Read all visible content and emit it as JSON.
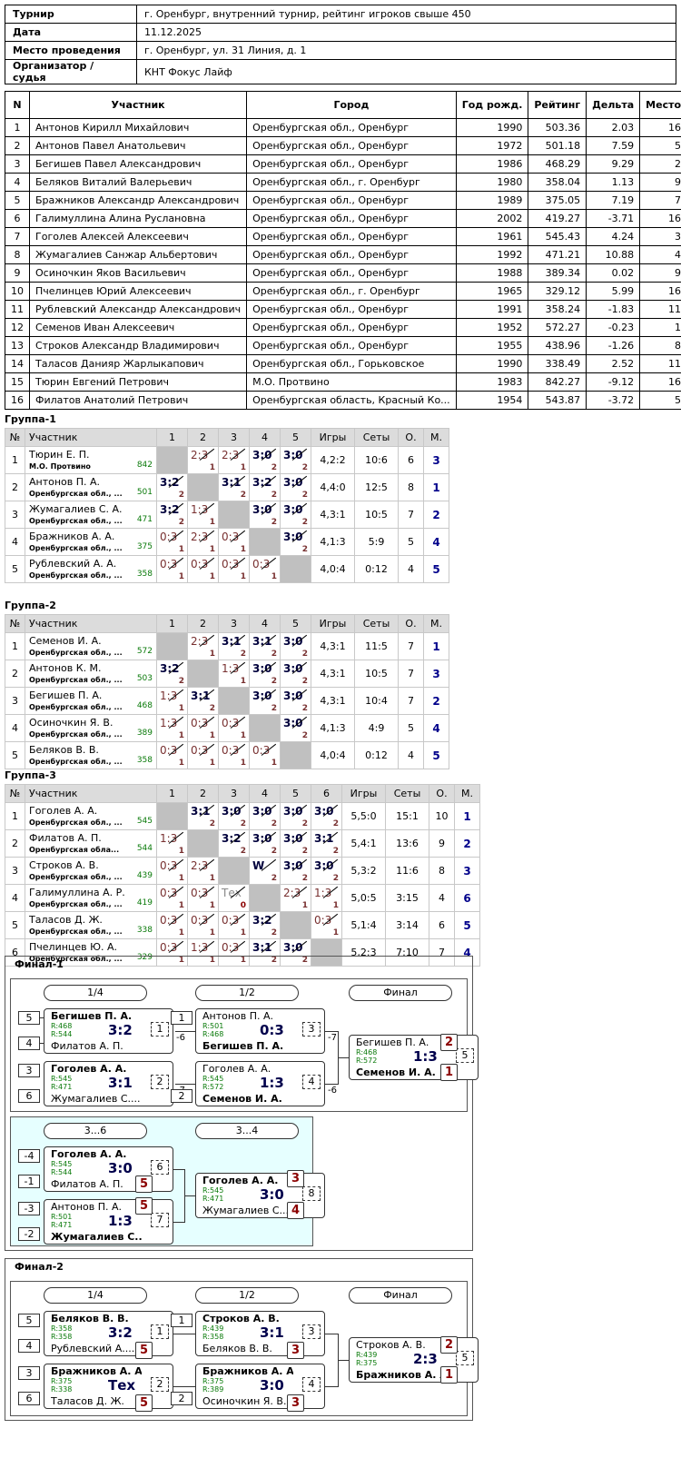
{
  "info": [
    {
      "label": "Турнир",
      "value": "г. Оренбург, внутренний турнир, рейтинг игроков свыше 450"
    },
    {
      "label": "Дата",
      "value": "11.12.2025"
    },
    {
      "label": "Место проведения",
      "value": "г. Оренбург, ул. 31 Линия, д. 1"
    },
    {
      "label": "Организатор / судья",
      "value": "КНТ Фокус Лайф"
    }
  ],
  "participants_headers": [
    "N",
    "Участник",
    "Город",
    "Год рожд.",
    "Рейтинг",
    "Дельта",
    "Место"
  ],
  "participants": [
    [
      "1",
      "Антонов Кирилл Михайлович",
      "Оренбургская обл., Оренбург",
      "1990",
      "503.36",
      "2.03",
      "16"
    ],
    [
      "2",
      "Антонов Павел Анатольевич",
      "Оренбургская обл., Оренбург",
      "1972",
      "501.18",
      "7.59",
      "5"
    ],
    [
      "3",
      "Бегишев Павел Александрович",
      "Оренбургская обл., Оренбург",
      "1986",
      "468.29",
      "9.29",
      "2"
    ],
    [
      "4",
      "Беляков Виталий Валерьевич",
      "Оренбургская обл., г. Оренбург",
      "1980",
      "358.04",
      "1.13",
      "9"
    ],
    [
      "5",
      "Бражников Александр Александрович",
      "Оренбургская обл., Оренбург",
      "1989",
      "375.05",
      "7.19",
      "7"
    ],
    [
      "6",
      "Галимуллина Алина Руслановна",
      "Оренбургская обл., Оренбург",
      "2002",
      "419.27",
      "-3.71",
      "16"
    ],
    [
      "7",
      "Гоголев Алексей Алексеевич",
      "Оренбургская обл., Оренбург",
      "1961",
      "545.43",
      "4.24",
      "3"
    ],
    [
      "8",
      "Жумагалиев Санжар Альбертович",
      "Оренбургская обл., Оренбург",
      "1992",
      "471.21",
      "10.88",
      "4"
    ],
    [
      "9",
      "Осиночкин Яков Васильевич",
      "Оренбургская обл., Оренбург",
      "1988",
      "389.34",
      "0.02",
      "9"
    ],
    [
      "10",
      "Пчелинцев Юрий Алексеевич",
      "Оренбургская обл., г. Оренбург",
      "1965",
      "329.12",
      "5.99",
      "16"
    ],
    [
      "11",
      "Рублевский Александр Александрович",
      "Оренбургская обл., Оренбург",
      "1991",
      "358.24",
      "-1.83",
      "11"
    ],
    [
      "12",
      "Семенов Иван Алексеевич",
      "Оренбургская обл., Оренбург",
      "1952",
      "572.27",
      "-0.23",
      "1"
    ],
    [
      "13",
      "Строков Александр Владимирович",
      "Оренбургская обл., Оренбург",
      "1955",
      "438.96",
      "-1.26",
      "8"
    ],
    [
      "14",
      "Таласов Данияр Жарлыкапович",
      "Оренбургская обл., Горьковское",
      "1990",
      "338.49",
      "2.52",
      "11"
    ],
    [
      "15",
      "Тюрин Евгений Петрович",
      "М.О. Протвино",
      "1983",
      "842.27",
      "-9.12",
      "16"
    ],
    [
      "16",
      "Филатов Анатолий Петрович",
      "Оренбургская область, Красный Ко...",
      "1954",
      "543.87",
      "-3.72",
      "5"
    ]
  ],
  "groups": [
    {
      "title": "Группа-1",
      "headers": [
        "№",
        "Участник",
        "1",
        "2",
        "3",
        "4",
        "5",
        "Игры",
        "Сеты",
        "О.",
        "М."
      ],
      "rows": [
        {
          "n": "1",
          "name": "Тюрин Е. П.",
          "city": "М.О. Протвино",
          "rating": "842",
          "cells": [
            null,
            [
              "2:3",
              "1",
              "l"
            ],
            [
              "2:3",
              "1",
              "l"
            ],
            [
              "3:0",
              "2",
              "w"
            ],
            [
              "3:0",
              "2",
              "w"
            ]
          ],
          "games": "4,2:2",
          "sets": "10:6",
          "pts": "6",
          "place": "3"
        },
        {
          "n": "2",
          "name": "Антонов П. А.",
          "city": "Оренбургская обл., ...",
          "rating": "501",
          "cells": [
            [
              "3:2",
              "2",
              "w"
            ],
            null,
            [
              "3:1",
              "2",
              "w"
            ],
            [
              "3:2",
              "2",
              "w"
            ],
            [
              "3:0",
              "2",
              "w"
            ]
          ],
          "games": "4,4:0",
          "sets": "12:5",
          "pts": "8",
          "place": "1"
        },
        {
          "n": "3",
          "name": "Жумагалиев С. А.",
          "city": "Оренбургская обл., ...",
          "rating": "471",
          "cells": [
            [
              "3:2",
              "2",
              "w"
            ],
            [
              "1:3",
              "1",
              "l"
            ],
            null,
            [
              "3:0",
              "2",
              "w"
            ],
            [
              "3:0",
              "2",
              "w"
            ]
          ],
          "games": "4,3:1",
          "sets": "10:5",
          "pts": "7",
          "place": "2"
        },
        {
          "n": "4",
          "name": "Бражников А. А.",
          "city": "Оренбургская обл., ...",
          "rating": "375",
          "cells": [
            [
              "0:3",
              "1",
              "l"
            ],
            [
              "2:3",
              "1",
              "l"
            ],
            [
              "0:3",
              "1",
              "l"
            ],
            null,
            [
              "3:0",
              "2",
              "w"
            ]
          ],
          "games": "4,1:3",
          "sets": "5:9",
          "pts": "5",
          "place": "4"
        },
        {
          "n": "5",
          "name": "Рублевский А. А.",
          "city": "Оренбургская обл., ...",
          "rating": "358",
          "cells": [
            [
              "0:3",
              "1",
              "l"
            ],
            [
              "0:3",
              "1",
              "l"
            ],
            [
              "0:3",
              "1",
              "l"
            ],
            [
              "0:3",
              "1",
              "l"
            ],
            null
          ],
          "games": "4,0:4",
          "sets": "0:12",
          "pts": "4",
          "place": "5"
        }
      ]
    },
    {
      "title": "Группа-2",
      "headers": [
        "№",
        "Участник",
        "1",
        "2",
        "3",
        "4",
        "5",
        "Игры",
        "Сеты",
        "О.",
        "М."
      ],
      "rows": [
        {
          "n": "1",
          "name": "Семенов И. А.",
          "city": "Оренбургская обл., ...",
          "rating": "572",
          "cells": [
            null,
            [
              "2:3",
              "1",
              "l"
            ],
            [
              "3:1",
              "2",
              "w"
            ],
            [
              "3:1",
              "2",
              "w"
            ],
            [
              "3:0",
              "2",
              "w"
            ]
          ],
          "games": "4,3:1",
          "sets": "11:5",
          "pts": "7",
          "place": "1"
        },
        {
          "n": "2",
          "name": "Антонов К. М.",
          "city": "Оренбургская обл., ...",
          "rating": "503",
          "cells": [
            [
              "3:2",
              "2",
              "w"
            ],
            null,
            [
              "1:3",
              "1",
              "l"
            ],
            [
              "3:0",
              "2",
              "w"
            ],
            [
              "3:0",
              "2",
              "w"
            ]
          ],
          "games": "4,3:1",
          "sets": "10:5",
          "pts": "7",
          "place": "3"
        },
        {
          "n": "3",
          "name": "Бегишев П. А.",
          "city": "Оренбургская обл., ...",
          "rating": "468",
          "cells": [
            [
              "1:3",
              "1",
              "l"
            ],
            [
              "3:1",
              "2",
              "w"
            ],
            null,
            [
              "3:0",
              "2",
              "w"
            ],
            [
              "3:0",
              "2",
              "w"
            ]
          ],
          "games": "4,3:1",
          "sets": "10:4",
          "pts": "7",
          "place": "2"
        },
        {
          "n": "4",
          "name": "Осиночкин Я. В.",
          "city": "Оренбургская обл., ...",
          "rating": "389",
          "cells": [
            [
              "1:3",
              "1",
              "l"
            ],
            [
              "0:3",
              "1",
              "l"
            ],
            [
              "0:3",
              "1",
              "l"
            ],
            null,
            [
              "3:0",
              "2",
              "w"
            ]
          ],
          "games": "4,1:3",
          "sets": "4:9",
          "pts": "5",
          "place": "4"
        },
        {
          "n": "5",
          "name": "Беляков В. В.",
          "city": "Оренбургская обл., ...",
          "rating": "358",
          "cells": [
            [
              "0:3",
              "1",
              "l"
            ],
            [
              "0:3",
              "1",
              "l"
            ],
            [
              "0:3",
              "1",
              "l"
            ],
            [
              "0:3",
              "1",
              "l"
            ],
            null
          ],
          "games": "4,0:4",
          "sets": "0:12",
          "pts": "4",
          "place": "5"
        }
      ]
    },
    {
      "title": "Группа-3",
      "headers": [
        "№",
        "Участник",
        "1",
        "2",
        "3",
        "4",
        "5",
        "6",
        "Игры",
        "Сеты",
        "О.",
        "М."
      ],
      "rows": [
        {
          "n": "1",
          "name": "Гоголев А. А.",
          "city": "Оренбургская обл., ...",
          "rating": "545",
          "cells": [
            null,
            [
              "3:1",
              "2",
              "w"
            ],
            [
              "3:0",
              "2",
              "w"
            ],
            [
              "3:0",
              "2",
              "w"
            ],
            [
              "3:0",
              "2",
              "w"
            ],
            [
              "3:0",
              "2",
              "w"
            ]
          ],
          "games": "5,5:0",
          "sets": "15:1",
          "pts": "10",
          "place": "1"
        },
        {
          "n": "2",
          "name": "Филатов А. П.",
          "city": "Оренбургская обла...",
          "rating": "544",
          "cells": [
            [
              "1:3",
              "1",
              "l"
            ],
            null,
            [
              "3:2",
              "2",
              "w"
            ],
            [
              "3:0",
              "2",
              "w"
            ],
            [
              "3:0",
              "2",
              "w"
            ],
            [
              "3:1",
              "2",
              "w"
            ]
          ],
          "games": "5,4:1",
          "sets": "13:6",
          "pts": "9",
          "place": "2"
        },
        {
          "n": "3",
          "name": "Строков А. В.",
          "city": "Оренбургская обл., ...",
          "rating": "439",
          "cells": [
            [
              "0:3",
              "1",
              "l"
            ],
            [
              "2:3",
              "1",
              "l"
            ],
            null,
            [
              "W",
              "2",
              "w"
            ],
            [
              "3:0",
              "2",
              "w"
            ],
            [
              "3:0",
              "2",
              "w"
            ]
          ],
          "games": "5,3:2",
          "sets": "11:6",
          "pts": "8",
          "place": "3"
        },
        {
          "n": "4",
          "name": "Галимуллина А. Р.",
          "city": "Оренбургская обл., ...",
          "rating": "419",
          "cells": [
            [
              "0:3",
              "1",
              "l"
            ],
            [
              "0:3",
              "1",
              "l"
            ],
            [
              "Тех",
              "0",
              "t"
            ],
            null,
            [
              "2:3",
              "1",
              "l"
            ],
            [
              "1:3",
              "1",
              "l"
            ]
          ],
          "games": "5,0:5",
          "sets": "3:15",
          "pts": "4",
          "place": "6"
        },
        {
          "n": "5",
          "name": "Таласов Д. Ж.",
          "city": "Оренбургская обл., ...",
          "rating": "338",
          "cells": [
            [
              "0:3",
              "1",
              "l"
            ],
            [
              "0:3",
              "1",
              "l"
            ],
            [
              "0:3",
              "1",
              "l"
            ],
            [
              "3:2",
              "2",
              "w"
            ],
            null,
            [
              "0:3",
              "1",
              "l"
            ]
          ],
          "games": "5,1:4",
          "sets": "3:14",
          "pts": "6",
          "place": "5"
        },
        {
          "n": "6",
          "name": "Пчелинцев Ю. А.",
          "city": "Оренбургская обл., ...",
          "rating": "329",
          "cells": [
            [
              "0:3",
              "1",
              "l"
            ],
            [
              "1:3",
              "1",
              "l"
            ],
            [
              "0:3",
              "1",
              "l"
            ],
            [
              "3:1",
              "2",
              "w"
            ],
            [
              "3:0",
              "2",
              "w"
            ],
            null
          ],
          "games": "5,2:3",
          "sets": "7:10",
          "pts": "7",
          "place": "4"
        }
      ]
    }
  ],
  "final1": {
    "title": "Финал-1",
    "rounds": [
      "1/4",
      "1/2",
      "Финал"
    ],
    "rounds2": [
      "3...6",
      "3...4"
    ],
    "m1": {
      "s1": "5",
      "s2": "4",
      "p1": "Бегишев П. А.",
      "r1": "R:468",
      "p2": "Филатов А. П.",
      "r2": "R:544",
      "score": "3:2",
      "num": "1",
      "next": "-6"
    },
    "m2": {
      "s1": "3",
      "s2": "6",
      "p1": "Гоголев А. А.",
      "r1": "R:545",
      "p2": "Жумагалиев С....",
      "r2": "R:471",
      "score": "3:1",
      "num": "2",
      "next": "-7"
    },
    "m3": {
      "s1": "1",
      "s2": "",
      "p1": "Антонов П. А.",
      "r1": "R:501",
      "p2": "Бегишев П. А.",
      "r2": "R:468",
      "score": "0:3",
      "num": "3",
      "next": "-7"
    },
    "m4": {
      "s1": "",
      "s2": "2",
      "p1": "Гоголев А. А.",
      "r1": "R:545",
      "p2": "Семенов И. А.",
      "r2": "R:572",
      "score": "1:3",
      "num": "4",
      "next": "-6"
    },
    "m5": {
      "p1": "Бегишев П. А.",
      "r1": "R:468",
      "p2": "Семенов И. А.",
      "r2": "R:572",
      "score": "1:3",
      "num": "5",
      "place1": "2",
      "place2": "1"
    },
    "m6": {
      "s1": "-4",
      "s2": "-1",
      "p1": "Гоголев А. А.",
      "r1": "R:545",
      "p2": "Филатов А. П.",
      "r2": "R:544",
      "score": "3:0",
      "num": "6",
      "place2": "5"
    },
    "m7": {
      "s1": "-3",
      "s2": "-2",
      "p1": "Антонов П. А.",
      "r1": "R:501",
      "p2": "Жумагалиев С....",
      "r2": "R:471",
      "score": "1:3",
      "num": "7",
      "place1": "5"
    },
    "m8": {
      "p1": "Гоголев А. А.",
      "r1": "R:545",
      "p2": "Жумагалиев С....",
      "r2": "R:471",
      "score": "3:0",
      "num": "8",
      "place1": "3",
      "place2": "4"
    }
  },
  "final2": {
    "title": "Финал-2",
    "rounds": [
      "1/4",
      "1/2",
      "Финал"
    ],
    "m1": {
      "s1": "5",
      "s2": "4",
      "p1": "Беляков В. В.",
      "r1": "R:358",
      "p2": "Рублевский А....",
      "r2": "R:358",
      "score": "3:2",
      "num": "1",
      "place2": "5"
    },
    "m2": {
      "s1": "3",
      "s2": "6",
      "p1": "Бражников А. А.",
      "r1": "R:375",
      "p2": "Таласов Д. Ж.",
      "r2": "R:338",
      "score": "Тех",
      "num": "2",
      "place2": "5"
    },
    "m3": {
      "s1": "1",
      "p1": "Строков А. В.",
      "r1": "R:439",
      "p2": "Беляков В. В.",
      "r2": "R:358",
      "score": "3:1",
      "num": "3",
      "place2": "3"
    },
    "m4": {
      "s2": "2",
      "p1": "Бражников А. А.",
      "r1": "R:375",
      "p2": "Осиночкин Я. В.",
      "r2": "R:389",
      "score": "3:0",
      "num": "4",
      "place2": "3"
    },
    "m5": {
      "p1": "Строков А. В.",
      "r1": "R:439",
      "p2": "Бражников А. А.",
      "r2": "R:375",
      "score": "2:3",
      "num": "5",
      "place1": "2",
      "place2": "1"
    }
  }
}
